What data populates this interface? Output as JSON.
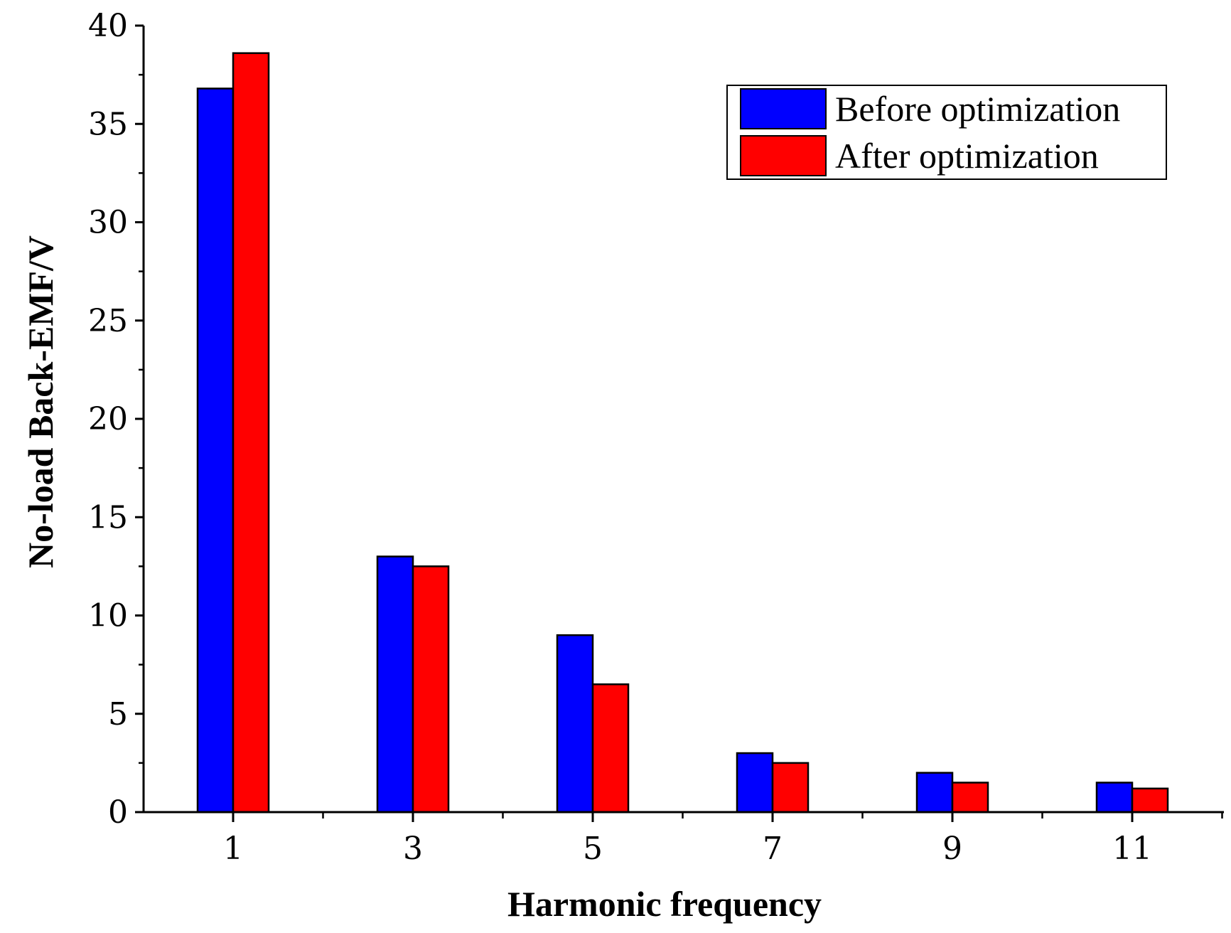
{
  "chart_data": {
    "type": "bar",
    "xlabel": "Harmonic frequency",
    "ylabel": "No-load Back-EMF/V",
    "categories": [
      "1",
      "3",
      "5",
      "7",
      "9",
      "11"
    ],
    "series": [
      {
        "name": "Before optimization",
        "color": "#0000ff",
        "values": [
          36.8,
          13.0,
          9.0,
          3.0,
          2.0,
          1.5
        ]
      },
      {
        "name": "After optimization",
        "color": "#ff0000",
        "values": [
          38.6,
          12.5,
          6.5,
          2.5,
          1.5,
          1.2
        ]
      }
    ],
    "ylim": [
      0,
      40
    ],
    "yticks": [
      0,
      5,
      10,
      15,
      20,
      25,
      30,
      35,
      40
    ],
    "grid": false,
    "legend": "top-right"
  }
}
